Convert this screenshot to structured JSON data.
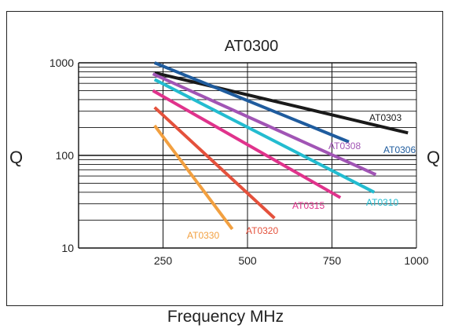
{
  "chart_data": {
    "type": "line",
    "title": "AT0300",
    "xlabel": "Frequency MHz",
    "ylabel_left": "Q",
    "ylabel_right": "Q",
    "x_scale": "linear",
    "y_scale": "log",
    "xlim": [
      0,
      1000
    ],
    "ylim": [
      10,
      1000
    ],
    "x_ticks": [
      "250",
      "500",
      "750",
      "1000"
    ],
    "y_ticks": [
      "10",
      "100",
      "1000"
    ],
    "grid": true,
    "series": [
      {
        "name": "AT0303",
        "color": "#1a1a1a",
        "x": [
          225,
          975
        ],
        "y": [
          780,
          175
        ]
      },
      {
        "name": "AT0306",
        "color": "#1f5c9e",
        "x": [
          225,
          800
        ],
        "y": [
          1000,
          140
        ]
      },
      {
        "name": "AT0308",
        "color": "#a155b5",
        "x": [
          220,
          880
        ],
        "y": [
          760,
          62
        ]
      },
      {
        "name": "AT0310",
        "color": "#23bcd0",
        "x": [
          225,
          875
        ],
        "y": [
          660,
          40
        ]
      },
      {
        "name": "AT0315",
        "color": "#e0338c",
        "x": [
          220,
          775
        ],
        "y": [
          500,
          35
        ]
      },
      {
        "name": "AT0320",
        "color": "#e4513c",
        "x": [
          225,
          580
        ],
        "y": [
          330,
          21
        ]
      },
      {
        "name": "AT0330",
        "color": "#f2a040",
        "x": [
          225,
          455
        ],
        "y": [
          210,
          16
        ]
      }
    ]
  }
}
